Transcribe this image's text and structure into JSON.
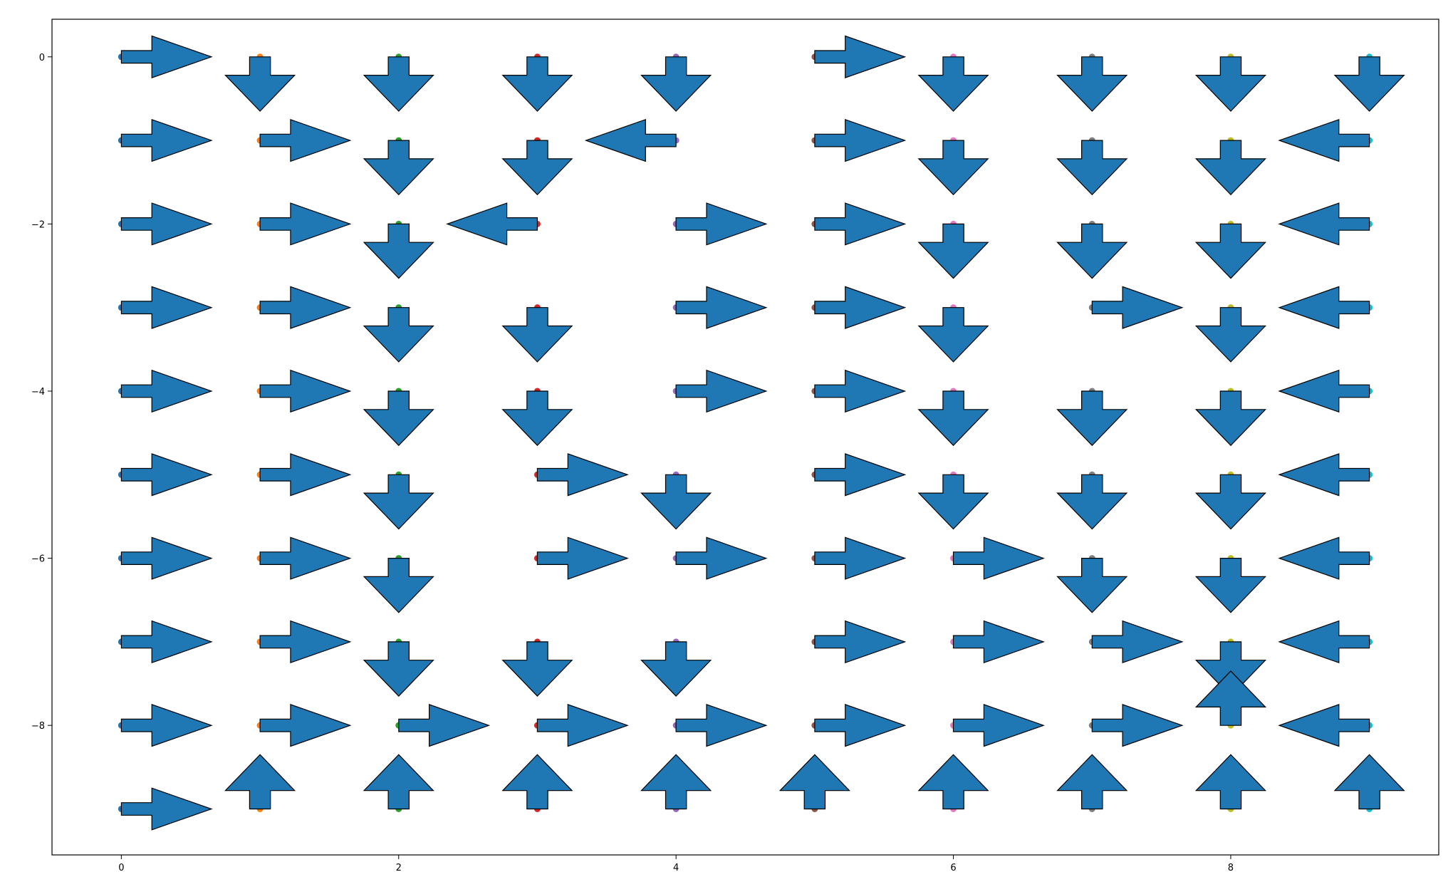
{
  "chart_data": {
    "type": "quiver",
    "title": "",
    "xlabel": "",
    "ylabel": "",
    "xlim": [
      -0.5,
      9.5
    ],
    "ylim": [
      -9.55,
      0.45
    ],
    "grid": false,
    "xticks": [
      0,
      2,
      4,
      6,
      8
    ],
    "xtick_labels": [
      "0",
      "2",
      "4",
      "6",
      "8"
    ],
    "yticks": [
      0,
      -2,
      -4,
      -6,
      -8
    ],
    "ytick_labels": [
      "0",
      "−2",
      "−4",
      "−6",
      "−8"
    ],
    "arrow_color": "#1f77b4",
    "arrow_edge_color": "#000000",
    "column_colors": [
      "#1f77b4",
      "#ff7f0e",
      "#2ca02c",
      "#d62728",
      "#9467bd",
      "#8c564b",
      "#e377c2",
      "#7f7f7f",
      "#bcbd22",
      "#17becf"
    ],
    "arrow_length": 0.65,
    "directions_legend": {
      "R": "right",
      "L": "left",
      "U": "up",
      "D": "down"
    },
    "grid_rows_y": [
      0,
      -1,
      -2,
      -3,
      -4,
      -5,
      -6,
      -7,
      -8,
      -9
    ],
    "grid_cols_x": [
      0,
      1,
      2,
      3,
      4,
      5,
      6,
      7,
      8,
      9
    ],
    "direction_grid": [
      [
        "R",
        "D",
        "D",
        "D",
        "D",
        "R",
        "D",
        "D",
        "D",
        "D"
      ],
      [
        "R",
        "R",
        "D",
        "D",
        "L",
        "R",
        "D",
        "D",
        "D",
        "L"
      ],
      [
        "R",
        "R",
        "D",
        "L",
        "R",
        "R",
        "D",
        "D",
        "D",
        "L"
      ],
      [
        "R",
        "R",
        "D",
        "D",
        "R",
        "R",
        "D",
        "R",
        "D",
        "L"
      ],
      [
        "R",
        "R",
        "D",
        "D",
        "R",
        "R",
        "D",
        "D",
        "D",
        "L"
      ],
      [
        "R",
        "R",
        "D",
        "R",
        "D",
        "R",
        "D",
        "D",
        "D",
        "L"
      ],
      [
        "R",
        "R",
        "D",
        "R",
        "R",
        "R",
        "R",
        "D",
        "D",
        "L"
      ],
      [
        "R",
        "R",
        "D",
        "D",
        "D",
        "R",
        "R",
        "R",
        "D",
        "L"
      ],
      [
        "R",
        "R",
        "R",
        "R",
        "R",
        "R",
        "R",
        "R",
        "U",
        "L"
      ],
      [
        "R",
        "U",
        "U",
        "U",
        "U",
        "U",
        "U",
        "U",
        "U",
        "U"
      ]
    ]
  }
}
